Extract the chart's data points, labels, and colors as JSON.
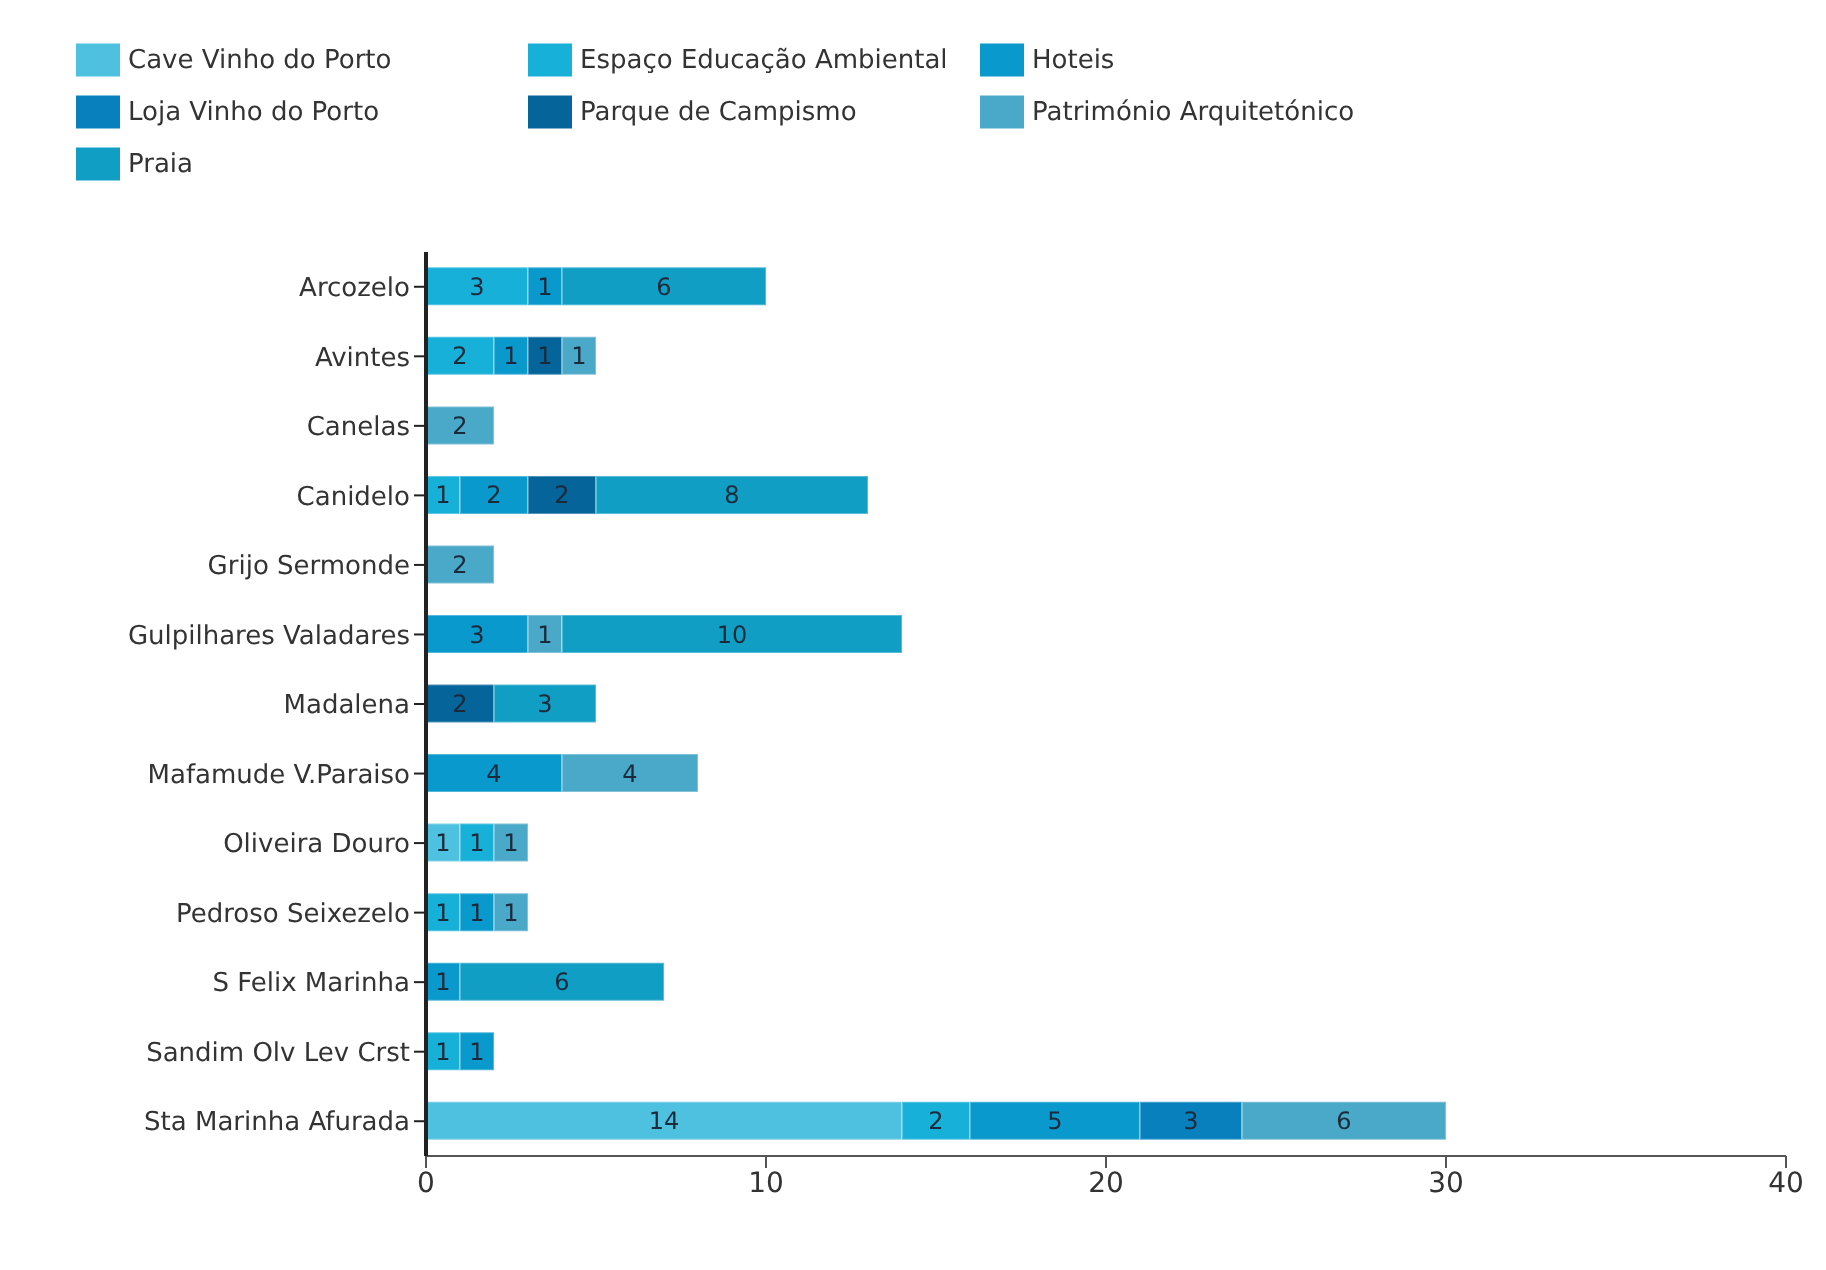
{
  "chart_data": {
    "type": "bar",
    "orientation": "horizontal",
    "stacked": true,
    "data_labels": true,
    "legend": "top",
    "grid": false,
    "categories": [
      "Arcozelo",
      "Avintes",
      "Canelas",
      "Canidelo",
      "Grijo Sermonde",
      "Gulpilhares Valadares",
      "Madalena",
      "Mafamude V.Paraiso",
      "Oliveira Douro",
      "Pedroso Seixezelo",
      "S Felix Marinha",
      "Sandim Olv Lev Crst",
      "Sta Marinha Afurada"
    ],
    "xlim": [
      0,
      40
    ],
    "xticks": [
      0,
      10,
      20,
      30,
      40
    ],
    "series": [
      {
        "name": "Cave Vinho do Porto",
        "color": "#4ec1e0",
        "values": [
          null,
          null,
          null,
          null,
          null,
          null,
          null,
          null,
          1,
          null,
          null,
          null,
          14
        ]
      },
      {
        "name": "Espaço Educação Ambiental",
        "color": "#17b0d8",
        "values": [
          3,
          2,
          null,
          1,
          null,
          null,
          null,
          null,
          1,
          1,
          null,
          1,
          2
        ]
      },
      {
        "name": "Hoteis",
        "color": "#0a99cc",
        "values": [
          1,
          1,
          null,
          2,
          null,
          3,
          null,
          4,
          null,
          1,
          1,
          1,
          5
        ]
      },
      {
        "name": "Loja Vinho do Porto",
        "color": "#0880bd",
        "values": [
          null,
          null,
          null,
          null,
          null,
          null,
          null,
          null,
          null,
          null,
          null,
          null,
          3
        ]
      },
      {
        "name": "Parque de Campismo",
        "color": "#05649a",
        "values": [
          null,
          1,
          null,
          2,
          null,
          null,
          2,
          null,
          null,
          null,
          null,
          null,
          null
        ]
      },
      {
        "name": "Património Arquitetónico",
        "color": "#4aa8c8",
        "values": [
          null,
          1,
          2,
          null,
          2,
          1,
          null,
          4,
          1,
          1,
          null,
          null,
          6
        ]
      },
      {
        "name": "Praia",
        "color": "#119ec4",
        "values": [
          6,
          null,
          null,
          8,
          null,
          10,
          3,
          null,
          null,
          null,
          6,
          null,
          null
        ]
      }
    ]
  }
}
